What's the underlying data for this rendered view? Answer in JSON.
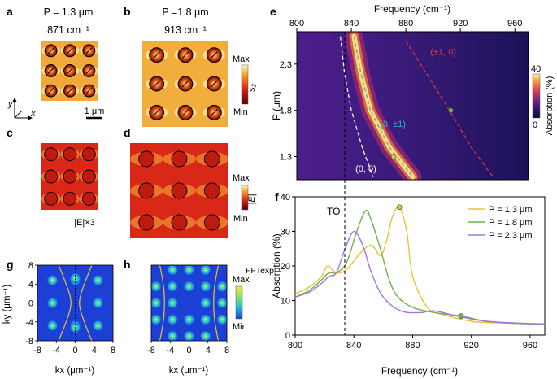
{
  "panel_labels": [
    "a",
    "b",
    "c",
    "d",
    "e",
    "f",
    "g",
    "h"
  ],
  "panel_a": {
    "period_label": "P = 1.3 μm",
    "freq_label": "871 cm⁻¹"
  },
  "panel_b": {
    "period_label": "P =1.8 μm",
    "freq_label": "913 cm⁻¹",
    "cbar_max": "Max",
    "cbar_min": "Min",
    "cbar_title": "s₂"
  },
  "axes_glyph": {
    "y": "y",
    "x": "x",
    "scalebar": "1 μm"
  },
  "panel_c": {
    "caption": "|E|×3"
  },
  "panel_d": {
    "cbar_max": "Max",
    "cbar_min": "Min",
    "cbar_title": "|E|"
  },
  "panel_g": {
    "ylabel": "ky (μm⁻¹)",
    "xlabel": "kx (μm⁻¹)",
    "yticks": [
      "8",
      "4",
      "0",
      "-4",
      "-8"
    ],
    "xticks": [
      "-8",
      "-4",
      "0",
      "4",
      "8"
    ]
  },
  "panel_h": {
    "xlabel": "kx (μm⁻¹)",
    "xticks": [
      "-8",
      "-4",
      "0",
      "4",
      "8"
    ],
    "cbar_max": "Max",
    "cbar_min": "Min",
    "cbar_title": "FFTexp"
  },
  "colors": {
    "hot_dark": "#5a0000",
    "hot_mid": "#d9261a",
    "hot_light": "#ffd24a",
    "map_low": "#0d0a45",
    "map_high": "#fff3a0",
    "s13": "#e8c436",
    "s18": "#6fb04a",
    "s23": "#a473e6"
  },
  "chart_data": [
    {
      "type": "heatmap",
      "panel": "e",
      "title": "Frequency (cm⁻¹)",
      "xlabel": "Frequency (cm⁻¹)",
      "ylabel": "P (μm)",
      "xlim": [
        800,
        970
      ],
      "ylim": [
        1.05,
        2.65
      ],
      "xticks": [
        800,
        840,
        880,
        920,
        960
      ],
      "xtick_labels": [
        "800",
        "840",
        "880",
        "920",
        "960"
      ],
      "yticks": [
        1.3,
        1.8,
        2.3
      ],
      "ytick_labels": [
        "1.3",
        "1.8",
        "2.3"
      ],
      "colorbar": {
        "label": "Absorption (%)",
        "max": "40",
        "min": "0"
      },
      "to_line_freq": 823,
      "curves": [
        {
          "name": "(0, 0)",
          "color": "#ffffff",
          "points": [
            [
              832,
              2.6
            ],
            [
              835,
              2.2
            ],
            [
              840,
              1.8
            ],
            [
              848,
              1.4
            ],
            [
              856,
              1.08
            ]
          ]
        },
        {
          "name": "(0, ±1)",
          "color": "#2fa8c8",
          "points": [
            [
              842,
              2.6
            ],
            [
              847,
              2.2
            ],
            [
              854,
              1.8
            ],
            [
              868,
              1.4
            ],
            [
              885,
              1.08
            ]
          ]
        },
        {
          "name": "(±1, 0)",
          "color": "#d93a3a",
          "points": [
            [
              880,
              2.55
            ],
            [
              895,
              2.2
            ],
            [
              912,
              1.8
            ],
            [
              928,
              1.4
            ],
            [
              944,
              1.08
            ]
          ]
        }
      ],
      "markers": [
        {
          "freq": 871,
          "period": 1.3,
          "color": "#e8c436"
        },
        {
          "freq": 913,
          "period": 1.8,
          "color": "#6fb04a"
        }
      ],
      "annotations": [
        "(0, 0)",
        "(0, ±1)",
        "(±1, 0)"
      ]
    },
    {
      "type": "line",
      "panel": "f",
      "xlabel": "Frequency (cm⁻¹)",
      "ylabel": "Absorption (%)",
      "xlim": [
        800,
        970
      ],
      "ylim": [
        0,
        40
      ],
      "xticks": [
        800,
        840,
        880,
        920,
        960
      ],
      "xtick_labels": [
        "800",
        "840",
        "880",
        "920",
        "960"
      ],
      "yticks": [
        0,
        10,
        20,
        30,
        40
      ],
      "ytick_labels": [
        "0",
        "10",
        "20",
        "30",
        "40"
      ],
      "to_label": "TO",
      "to_line_freq": 823,
      "legend": [
        "P = 1.3 μm",
        "P = 1.8 μm",
        "P = 2.3 μm"
      ],
      "series": [
        {
          "name": "P = 1.3 μm",
          "color": "#e8c436",
          "x": [
            800,
            810,
            818,
            822,
            828,
            835,
            845,
            852,
            858,
            862,
            866,
            871,
            876,
            880,
            890,
            900,
            920,
            940,
            970
          ],
          "y": [
            12,
            14,
            17,
            20,
            18,
            19,
            24,
            26,
            23,
            27,
            34,
            37,
            30,
            17,
            8,
            6,
            4,
            3.5,
            3.2
          ]
        },
        {
          "name": "P = 1.8 μm",
          "color": "#6fb04a",
          "x": [
            800,
            810,
            818,
            823,
            828,
            835,
            842,
            848,
            852,
            858,
            864,
            870,
            880,
            895,
            913,
            930,
            950,
            970
          ],
          "y": [
            11,
            13,
            16,
            18,
            18,
            21,
            30,
            36,
            33,
            25,
            16,
            11,
            8,
            6.5,
            5.5,
            4,
            3.4,
            3.2
          ]
        },
        {
          "name": "P = 2.3 μm",
          "color": "#a473e6",
          "x": [
            800,
            810,
            818,
            823,
            828,
            834,
            840,
            846,
            852,
            860,
            872,
            885,
            895,
            910,
            930,
            950,
            970
          ],
          "y": [
            11,
            12.5,
            15,
            17,
            18,
            25,
            30,
            26,
            18,
            11,
            7,
            6.5,
            7,
            5.5,
            4,
            3.5,
            3.2
          ]
        }
      ],
      "markers": [
        {
          "x": 871,
          "y": 37,
          "color": "#e8c436"
        },
        {
          "x": 913,
          "y": 5.5,
          "color": "#6fb04a"
        }
      ]
    }
  ]
}
